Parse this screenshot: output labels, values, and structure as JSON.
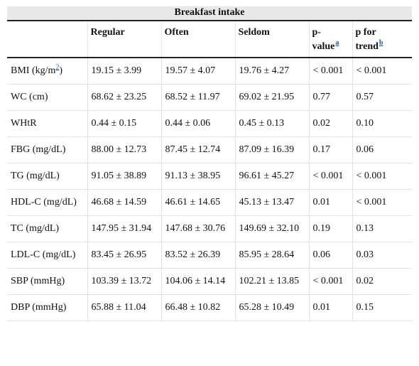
{
  "table": {
    "group_header": "Breakfast intake",
    "columns": {
      "regular": "Regular",
      "often": "Often",
      "seldom": "Seldom",
      "pvalue_a": "p-",
      "pvalue_b": "value",
      "pvalue_note": "a",
      "ptrend_a": "p for",
      "ptrend_b": "trend",
      "ptrend_note": "b"
    },
    "rows": [
      {
        "label": "BMI (kg/m",
        "label_sup": "2",
        "label_end": ")",
        "regular": "19.15 ± 3.99",
        "often": "19.57 ± 4.07",
        "seldom": "19.76 ± 4.27",
        "p": "< 0.001",
        "trend": "< 0.001"
      },
      {
        "label": "WC (cm)",
        "regular": "68.62 ± 23.25",
        "often": "68.52 ± 11.97",
        "seldom": "69.02 ± 21.95",
        "p": "0.77",
        "trend": "0.57"
      },
      {
        "label": "WHtR",
        "regular": "0.44 ± 0.15",
        "often": "0.44 ± 0.06",
        "seldom": "0.45 ± 0.13",
        "p": "0.02",
        "trend": "0.10"
      },
      {
        "label": "FBG (mg/dL)",
        "regular": "88.00 ± 12.73",
        "often": "87.45 ± 12.74",
        "seldom": "87.09 ± 16.39",
        "p": "0.17",
        "trend": "0.06"
      },
      {
        "label": "TG (mg/dL)",
        "regular": "91.05 ± 38.89",
        "often": "91.13 ± 38.95",
        "seldom": "96.61 ± 45.27",
        "p": "< 0.001",
        "trend": "< 0.001"
      },
      {
        "label": "HDL-C (mg/dL)",
        "regular": "46.68 ± 14.59",
        "often": "46.61 ± 14.65",
        "seldom": "45.13 ± 13.47",
        "p": "0.01",
        "trend": "< 0.001"
      },
      {
        "label": "TC (mg/dL)",
        "regular": "147.95 ± 31.94",
        "often": "147.68 ± 30.76",
        "seldom": "149.69 ± 32.10",
        "p": "0.19",
        "trend": "0.13"
      },
      {
        "label": "LDL-C (mg/dL)",
        "regular": "83.45 ± 26.95",
        "often": "83.52 ± 26.39",
        "seldom": "85.95 ± 28.64",
        "p": "0.06",
        "trend": "0.03"
      },
      {
        "label": "SBP (mmHg)",
        "regular": "103.39 ± 13.72",
        "often": "104.06 ± 14.14",
        "seldom": "102.21 ± 13.85",
        "p": "< 0.001",
        "trend": "0.02"
      },
      {
        "label": "DBP (mmHg)",
        "regular": "65.88 ± 11.04",
        "often": "66.48 ± 10.82",
        "seldom": "65.28 ± 10.49",
        "p": "0.01",
        "trend": "0.15"
      }
    ]
  },
  "colors": {
    "header_bg": "#e8e8e8",
    "rule": "#222222",
    "link": "#1a4fc4"
  }
}
